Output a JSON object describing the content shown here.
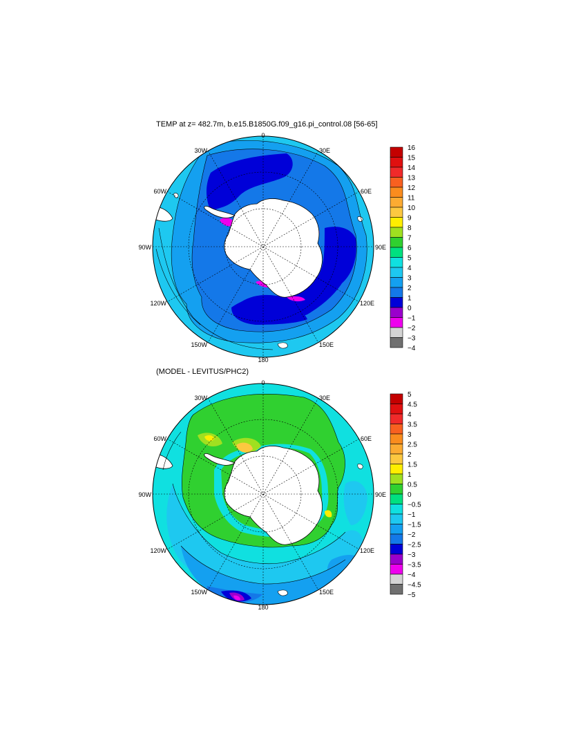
{
  "panels": [
    {
      "title": "TEMP at z= 482.7m, b.e15.B1850G.f09_g16.pi_control.08 [56-65]",
      "longitude_labels": [
        "0",
        "30E",
        "60E",
        "90E",
        "120E",
        "150E",
        "180",
        "150W",
        "120W",
        "90W",
        "60W",
        "30W"
      ],
      "colorbar": {
        "labels": [
          "16",
          "15",
          "14",
          "13",
          "12",
          "11",
          "10",
          "9",
          "8",
          "7",
          "6",
          "5",
          "4",
          "3",
          "2",
          "1",
          "0",
          "−1",
          "−2",
          "−3",
          "−4"
        ],
        "colors": [
          "#c40000",
          "#e01010",
          "#f02a2a",
          "#f86020",
          "#fa8c1e",
          "#fcab32",
          "#fcc840",
          "#ffee00",
          "#a0e020",
          "#30d030",
          "#00e080",
          "#10e0e0",
          "#1ec8f0",
          "#14a0f0",
          "#1478e8",
          "#0000d8",
          "#9a00cc",
          "#ee00ee",
          "#d4d4d4",
          "#707070"
        ]
      }
    },
    {
      "title": "(MODEL - LEVITUS/PHC2)",
      "longitude_labels": [
        "0",
        "30E",
        "60E",
        "90E",
        "120E",
        "150E",
        "180",
        "150W",
        "120W",
        "90W",
        "60W",
        "30W"
      ],
      "colorbar": {
        "labels": [
          "5",
          "4.5",
          "4",
          "3.5",
          "3",
          "2.5",
          "2",
          "1.5",
          "1",
          "0.5",
          "0",
          "−0.5",
          "−1",
          "−1.5",
          "−2",
          "−2.5",
          "−3",
          "−3.5",
          "−4",
          "−4.5",
          "−5"
        ],
        "colors": [
          "#c40000",
          "#e01010",
          "#f02a2a",
          "#f86020",
          "#fa8c1e",
          "#fcab32",
          "#fcc840",
          "#ffee00",
          "#a0e020",
          "#30d030",
          "#00e080",
          "#10e0e0",
          "#1ec8f0",
          "#14a0f0",
          "#1478e8",
          "#0000d8",
          "#9a00cc",
          "#ee00ee",
          "#d4d4d4",
          "#707070"
        ]
      }
    }
  ]
}
